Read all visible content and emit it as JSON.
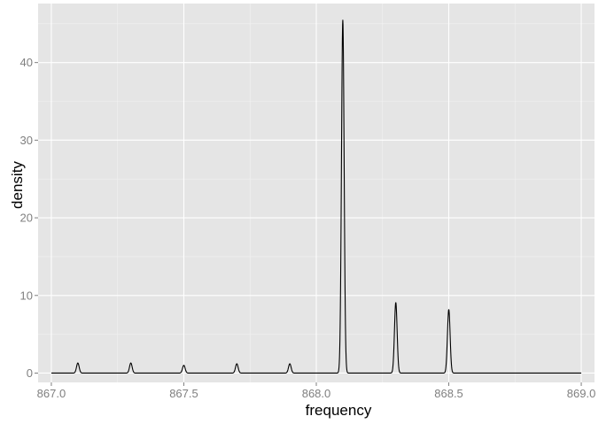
{
  "chart_data": {
    "type": "line",
    "title": "",
    "xlabel": "frequency",
    "ylabel": "density",
    "xlim": [
      866.95,
      869.05
    ],
    "ylim": [
      -1.2,
      47.6
    ],
    "x_ticks": [
      867.0,
      867.5,
      868.0,
      868.5,
      869.0
    ],
    "x_tick_labels": [
      "867.0",
      "867.5",
      "868.0",
      "868.5",
      "869.0"
    ],
    "y_ticks": [
      0,
      10,
      20,
      30,
      40
    ],
    "y_tick_labels": [
      "0",
      "10",
      "20",
      "30",
      "40"
    ],
    "grid": true,
    "background": "#e5e5e5",
    "line_color": "#000000",
    "line_x_range": [
      867.0,
      869.0
    ],
    "peak_width": 0.005,
    "series": [
      {
        "peaks": [
          {
            "x": 867.1,
            "y": 1.3
          },
          {
            "x": 867.3,
            "y": 1.3
          },
          {
            "x": 867.5,
            "y": 1.0
          },
          {
            "x": 867.7,
            "y": 1.2
          },
          {
            "x": 867.9,
            "y": 1.2
          },
          {
            "x": 868.1,
            "y": 45.5
          },
          {
            "x": 868.3,
            "y": 9.1
          },
          {
            "x": 868.5,
            "y": 8.2
          }
        ]
      }
    ]
  }
}
